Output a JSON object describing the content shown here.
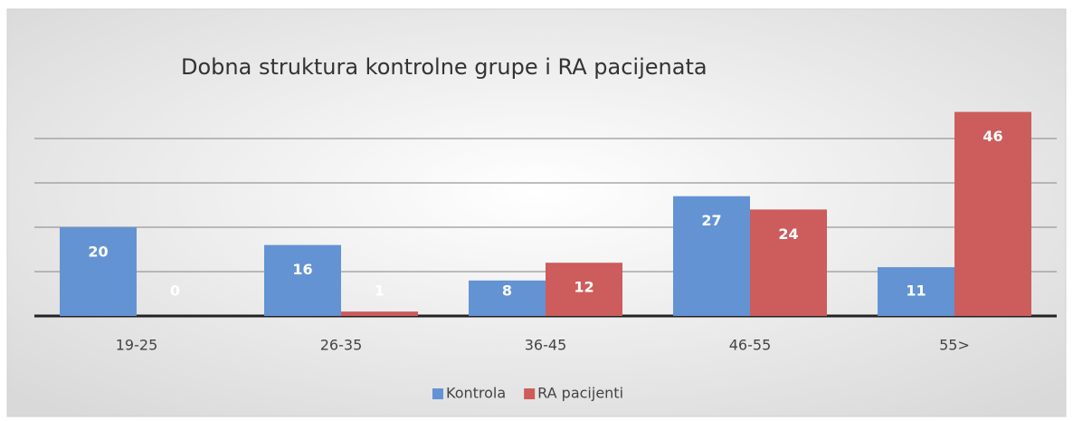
{
  "chart_data": {
    "type": "bar",
    "title": "Dobna struktura kontrolne grupe i RA pacijenata",
    "categories": [
      "19-25",
      "26-35",
      "36-45",
      "46-55",
      "55>"
    ],
    "series": [
      {
        "name": "Kontrola",
        "color": "#6393d3",
        "values": [
          20,
          16,
          8,
          27,
          11
        ]
      },
      {
        "name": "RA pacijenti",
        "color": "#cd5c5c",
        "values": [
          0,
          1,
          12,
          24,
          46
        ]
      }
    ],
    "ylim": [
      0,
      50
    ],
    "yticks": [
      0,
      10,
      20,
      30,
      40
    ],
    "grid": true,
    "legend": "bottom"
  }
}
